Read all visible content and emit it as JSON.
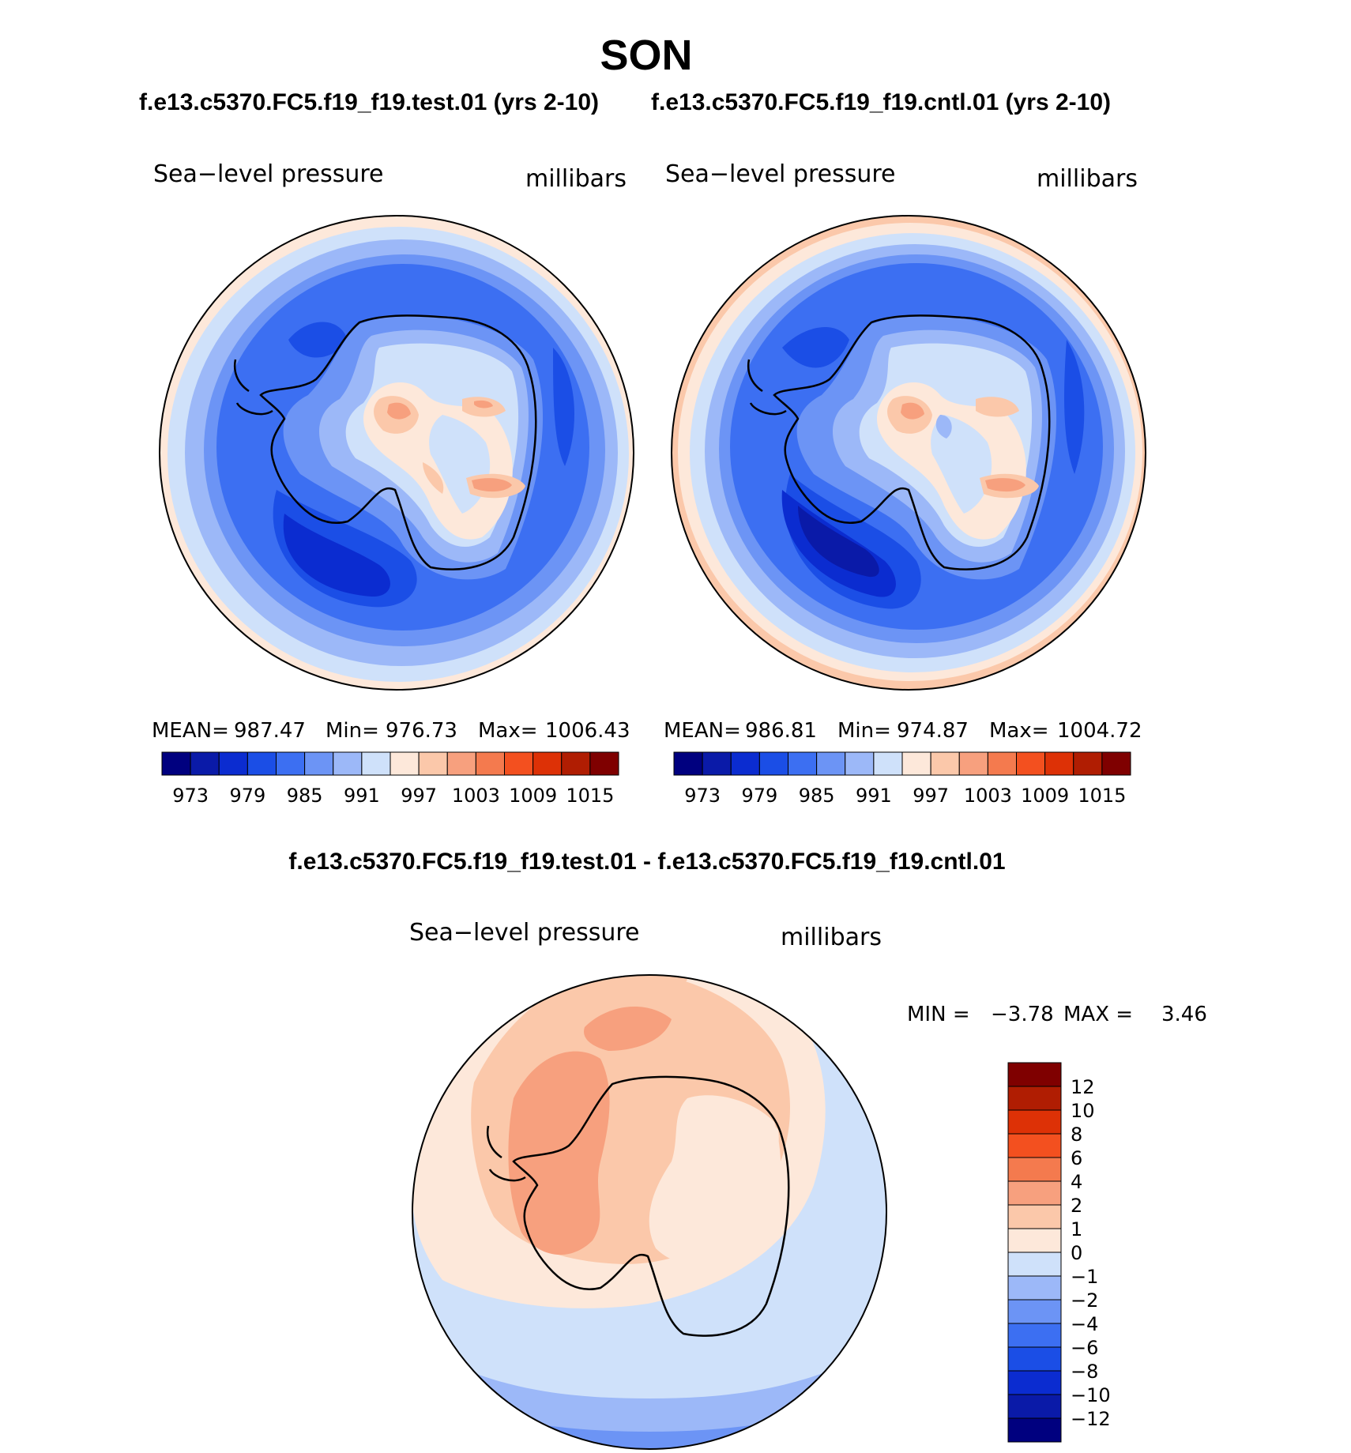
{
  "figure": {
    "title": "SON",
    "subtitle_left": "f.e13.c5370.FC5.f19_f19.test.01 (yrs 2-10)",
    "subtitle_right": "f.e13.c5370.FC5.f19_f19.cntl.01 (yrs 2-10)",
    "diff_title": "f.e13.c5370.FC5.f19_f19.test.01 - f.e13.c5370.FC5.f19_f19.cntl.01"
  },
  "colors": {
    "abs_levels": [
      "#00007f",
      "#0a1aa8",
      "#0b2cd0",
      "#1b4ee6",
      "#3c6ff2",
      "#6c94f5",
      "#9cb8f8",
      "#cfe1fa",
      "#fde8da",
      "#fbc8aa",
      "#f7a07e",
      "#f47a4e",
      "#f3501f",
      "#dd3106",
      "#b01d02",
      "#7f0000"
    ],
    "diff_levels": [
      "#00007f",
      "#0a1aa8",
      "#0b2cd0",
      "#1b4ee6",
      "#3c6ff2",
      "#6c94f5",
      "#9cb8f8",
      "#cfe1fa",
      "#fde8da",
      "#fbc8aa",
      "#f7a07e",
      "#f47a4e",
      "#f3501f",
      "#dd3106",
      "#b01d02",
      "#7f0000"
    ]
  },
  "chart_data": [
    {
      "type": "heatmap",
      "projection": "south-polar-stereographic",
      "title": "Sea−level pressure",
      "units": "millibars",
      "stats": {
        "mean_label": "MEAN=",
        "mean": "987.47",
        "min_label": "Min=",
        "min": "976.73",
        "max_label": "Max=",
        "max": "1006.43"
      },
      "colorbar_ticks": [
        "973",
        "979",
        "985",
        "991",
        "997",
        "1003",
        "1009",
        "1015"
      ]
    },
    {
      "type": "heatmap",
      "projection": "south-polar-stereographic",
      "title": "Sea−level pressure",
      "units": "millibars",
      "stats": {
        "mean_label": "MEAN=",
        "mean": "986.81",
        "min_label": "Min=",
        "min": "974.87",
        "max_label": "Max=",
        "max": "1004.72"
      },
      "colorbar_ticks": [
        "973",
        "979",
        "985",
        "991",
        "997",
        "1003",
        "1009",
        "1015"
      ]
    },
    {
      "type": "heatmap",
      "projection": "south-polar-stereographic",
      "title": "Sea−level pressure",
      "units": "millibars",
      "stats": {
        "min_label": "MIN =",
        "min": "−3.78",
        "max_label": "MAX =",
        "max": "3.46"
      },
      "colorbar_ticks": [
        "12",
        "10",
        "8",
        "6",
        "4",
        "2",
        "1",
        "0",
        "−1",
        "−2",
        "−4",
        "−6",
        "−8",
        "−10",
        "−12"
      ]
    }
  ]
}
